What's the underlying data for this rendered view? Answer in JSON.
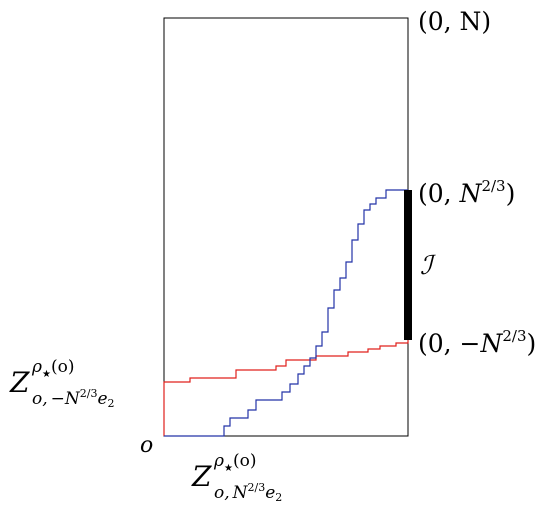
{
  "figure": {
    "colors": {
      "frame": "#000000",
      "red_path": "#e0201c",
      "blue_path": "#2333a8",
      "interval_bar": "#000000"
    },
    "labels": {
      "top_right": "(0, N)",
      "upper": {
        "lp": "(0, ",
        "n": "N",
        "exp": "2/3",
        "rp": ")"
      },
      "lower": {
        "lp": "(0, −",
        "n": "N",
        "exp": "2/3",
        "rp": ")"
      },
      "interval": "ℐ",
      "origin": "o",
      "z_left": {
        "base": "Z",
        "sup_rho": "ρ",
        "sup_star": "★",
        "sup_arg": "(o)",
        "sub_o": "o,",
        "sub_minus": "−",
        "sub_n": "N",
        "sub_exp": "2/3",
        "sub_e": "e",
        "sub_two": "2"
      },
      "z_bottom": {
        "base": "Z",
        "sup_rho": "ρ",
        "sup_star": "★",
        "sup_arg": "(o)",
        "sub_o": "o,",
        "sub_n": "N",
        "sub_exp": "2/3",
        "sub_e": "e",
        "sub_two": "2"
      }
    }
  }
}
